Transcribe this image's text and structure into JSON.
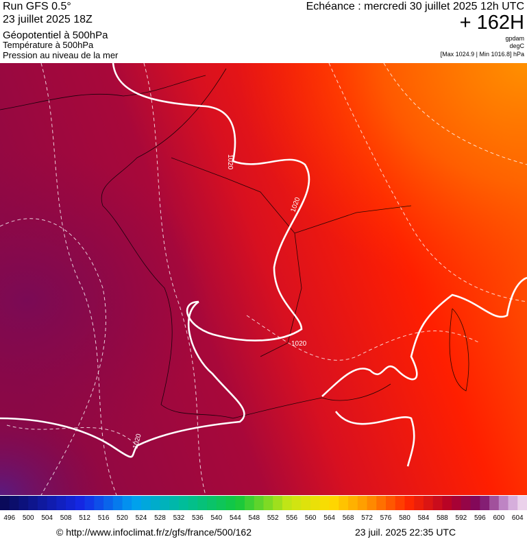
{
  "header": {
    "run": "Run GFS 0.5°",
    "run_date": "23 juillet 2025 18Z",
    "layer1": "Géopotentiel à 500hPa",
    "layer2": "Température à 500hPa",
    "layer3": "Pression au niveau de la mer",
    "valid_time": "Echéance : mercredi 30 juillet 2025 12h UTC",
    "lead": "+ 162H",
    "unit1": "gpdam",
    "unit2": "degC",
    "range": "[Max 1024.9 | Min 1016.8] hPa"
  },
  "map": {
    "isobar_labels": [
      "1020",
      "1020",
      "1020",
      "1020"
    ]
  },
  "legend": {
    "ticks": [
      496,
      500,
      504,
      508,
      512,
      516,
      520,
      524,
      528,
      532,
      536,
      540,
      544,
      548,
      552,
      556,
      560,
      564,
      568,
      572,
      576,
      580,
      584,
      588,
      592,
      596,
      600,
      604
    ]
  },
  "footer": {
    "source": "© http://www.infoclimat.fr/z/gfs/france/500/162",
    "generated": "23 juil. 2025 22:35 UTC"
  }
}
